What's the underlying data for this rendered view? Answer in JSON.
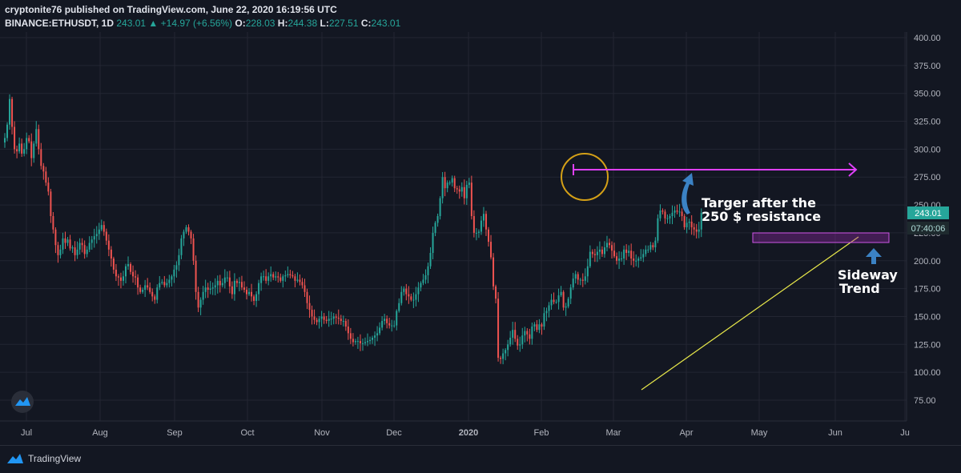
{
  "header": {
    "line1": "cryptonite76 published on TradingView.com, June 22, 2020 16:19:56 UTC",
    "symbol": "BINANCE:ETHUSDT, 1D",
    "last": "243.01",
    "change_arrow": "▲",
    "change": "+14.97 (+6.56%)",
    "o_label": "O:",
    "o_val": "228.03",
    "h_label": "H:",
    "h_val": "244.38",
    "l_label": "L:",
    "l_val": "227.51",
    "c_label": "C:",
    "c_val": "243.01"
  },
  "price_tag": "243.01",
  "timer_tag": "07:40:06",
  "annotations": {
    "target_line1": "Targer after the",
    "target_line2": "250 $ resistance",
    "sideway_line1": "Sideway",
    "sideway_line2": "Trend"
  },
  "footer": {
    "brand": "TradingView"
  },
  "colors": {
    "up": "#26a69a",
    "down": "#ef5350",
    "background": "#131722",
    "grid": "#242733",
    "magenta": "#e040fb",
    "trendline": "#e8e84a",
    "circle": "#d4a017",
    "arrow_blue": "#3b82c4"
  },
  "chart_data": {
    "type": "candlestick",
    "title": "BINANCE:ETHUSDT, 1D",
    "ylim": [
      65,
      400
    ],
    "y_ticks": [
      "400.00",
      "375.00",
      "350.00",
      "325.00",
      "300.00",
      "275.00",
      "250.00",
      "225.00",
      "200.00",
      "175.00",
      "150.00",
      "125.00",
      "100.00",
      "75.00"
    ],
    "x_ticks": [
      "Jul",
      "Aug",
      "Sep",
      "Oct",
      "Nov",
      "Dec",
      "2020",
      "Feb",
      "Mar",
      "Apr",
      "May",
      "Jun",
      "Ju"
    ],
    "series": [
      {
        "close": [
          310,
          322,
          345,
          320,
          300,
          298,
          305,
          296,
          300,
          310,
          307,
          292,
          305,
          318,
          300,
          285,
          280,
          270,
          262,
          240,
          228,
          214,
          205,
          210,
          220,
          216,
          219,
          211,
          212,
          205,
          210,
          216,
          214,
          206,
          210,
          216,
          219,
          222,
          224,
          228,
          232,
          226,
          218,
          210,
          202,
          192,
          186,
          185,
          182,
          186,
          195,
          197,
          190,
          186,
          185,
          176,
          172,
          174,
          178,
          176,
          172,
          168,
          165,
          176,
          180,
          181,
          178,
          180,
          183,
          186,
          192,
          196,
          205,
          220,
          226,
          230,
          226,
          220,
          200,
          172,
          158,
          165,
          172,
          176,
          174,
          175,
          176,
          178,
          182,
          178,
          180,
          185,
          185,
          177,
          170,
          182,
          180,
          181,
          176,
          174,
          170,
          172,
          168,
          164,
          170,
          180,
          186,
          186,
          182,
          186,
          188,
          185,
          186,
          185,
          182,
          186,
          187,
          188,
          187,
          186,
          182,
          183,
          181,
          178,
          172,
          162,
          156,
          150,
          147,
          145,
          148,
          150,
          147,
          146,
          148,
          148,
          150,
          149,
          148,
          146,
          146,
          141,
          135,
          130,
          127,
          128,
          128,
          126,
          126,
          127,
          128,
          129,
          131,
          133,
          135,
          140,
          146,
          148,
          144,
          142,
          142,
          142,
          155,
          162,
          172,
          175,
          170,
          168,
          165,
          165,
          170,
          176,
          180,
          183,
          187,
          195,
          207,
          225,
          234,
          240,
          256,
          275,
          265,
          270,
          270,
          274,
          265,
          264,
          262,
          266,
          256,
          268,
          270,
          240,
          225,
          225,
          226,
          236,
          242,
          228,
          217,
          203,
          177,
          166,
          113,
          112,
          117,
          120,
          125,
          131,
          138,
          130,
          124,
          125,
          133,
          137,
          134,
          130,
          141,
          143,
          138,
          143,
          141,
          153,
          155,
          160,
          165,
          163,
          163,
          169,
          172,
          158,
          159,
          166,
          176,
          184,
          188,
          183,
          183,
          182,
          186,
          195,
          208,
          206,
          205,
          208,
          210,
          206,
          212,
          216,
          214,
          209,
          204,
          200,
          202,
          202,
          210,
          207,
          209,
          202,
          200,
          200,
          202,
          203,
          206,
          210,
          210,
          214,
          212,
          218,
          238,
          245,
          244,
          238,
          238,
          240,
          243,
          245,
          244,
          244,
          240,
          230,
          234,
          235,
          230,
          228,
          226,
          228,
          243
        ]
      }
    ]
  }
}
